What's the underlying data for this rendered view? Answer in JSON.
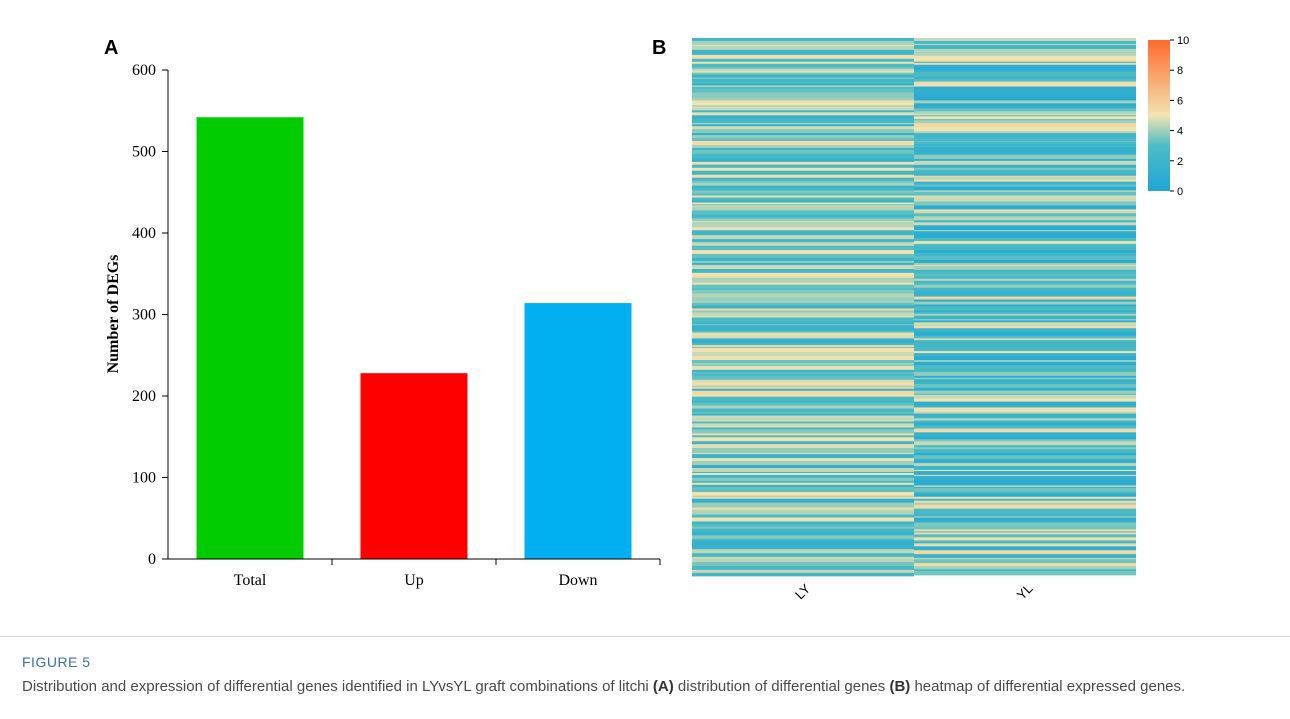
{
  "chart_data": [
    {
      "panel": "A",
      "type": "bar",
      "categories": [
        "Total",
        "Up",
        "Down"
      ],
      "values": [
        542,
        228,
        314
      ],
      "colors": [
        "#00cc00",
        "#ff0000",
        "#00b0f0"
      ],
      "ylabel": "Number of DEGs",
      "xlabel": "",
      "ylim": [
        0,
        600
      ],
      "yticks": [
        0,
        100,
        200,
        300,
        400,
        500,
        600
      ],
      "grid": false
    },
    {
      "panel": "B",
      "type": "heatmap",
      "columns": [
        "LY",
        "YL"
      ],
      "row_count": 542,
      "colorbar": {
        "ticks": [
          0,
          2,
          4,
          6,
          8,
          10
        ],
        "range": [
          0,
          10
        ],
        "colors": [
          "#1fa6d6",
          "#4dbcc4",
          "#f1e4b2",
          "#ff6a2e"
        ]
      }
    }
  ],
  "caption": {
    "label": "FIGURE 5",
    "text_before_a": "Distribution and expression of differential genes identified in LYvsYL graft combinations of litchi ",
    "marker_a": "(A)",
    "text_between": " distribution of differential genes ",
    "marker_b": "(B)",
    "text_after_b": " heatmap of differential expressed genes."
  }
}
